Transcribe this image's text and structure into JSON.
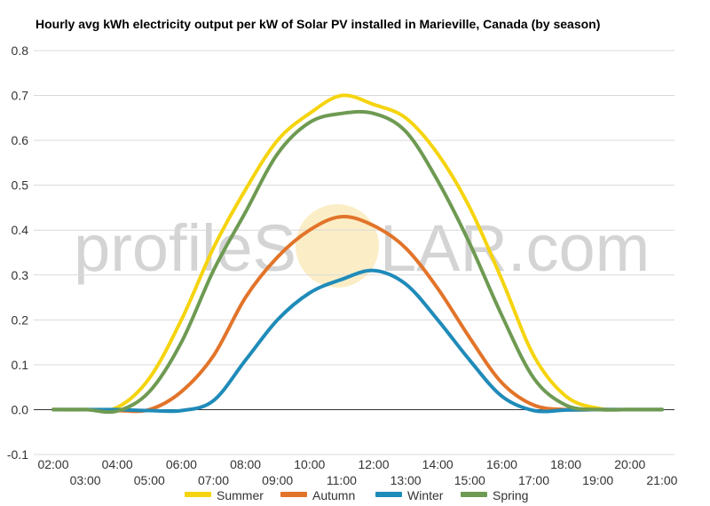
{
  "chart_data": {
    "type": "line",
    "title": "Hourly avg kWh electricity output per kW of Solar PV installed in Marieville, Canada (by season)",
    "xlabel": "",
    "ylabel": "",
    "ylim": [
      -0.1,
      0.8
    ],
    "yticks": [
      "0.8",
      "0.7",
      "0.6",
      "0.5",
      "0.4",
      "0.3",
      "0.2",
      "0.1",
      "0.0",
      "-0.1"
    ],
    "categories": [
      "02:00",
      "03:00",
      "04:00",
      "05:00",
      "06:00",
      "07:00",
      "08:00",
      "09:00",
      "10:00",
      "11:00",
      "12:00",
      "13:00",
      "14:00",
      "15:00",
      "16:00",
      "17:00",
      "18:00",
      "19:00",
      "20:00",
      "21:00"
    ],
    "grid": true,
    "legend": "bottom",
    "series": [
      {
        "name": "Summer",
        "color": "#f5d40f",
        "values": [
          0,
          0,
          0.005,
          0.07,
          0.2,
          0.36,
          0.49,
          0.6,
          0.66,
          0.7,
          0.68,
          0.65,
          0.57,
          0.45,
          0.29,
          0.12,
          0.03,
          0.003,
          0,
          0
        ]
      },
      {
        "name": "Autumn",
        "color": "#e2742a",
        "values": [
          0,
          0,
          -0.002,
          0,
          0.04,
          0.12,
          0.25,
          0.34,
          0.4,
          0.43,
          0.41,
          0.36,
          0.27,
          0.16,
          0.06,
          0.01,
          0,
          0,
          0,
          0
        ]
      },
      {
        "name": "Winter",
        "color": "#1f8bb9",
        "values": [
          0,
          0,
          0,
          -0.002,
          -0.002,
          0.02,
          0.11,
          0.2,
          0.26,
          0.29,
          0.31,
          0.28,
          0.2,
          0.11,
          0.03,
          -0.002,
          -0.001,
          0,
          0,
          0
        ]
      },
      {
        "name": "Spring",
        "color": "#6e9a52",
        "values": [
          0,
          0,
          -0.003,
          0.04,
          0.15,
          0.31,
          0.44,
          0.57,
          0.64,
          0.66,
          0.66,
          0.62,
          0.51,
          0.37,
          0.21,
          0.07,
          0.01,
          0,
          0,
          0
        ]
      }
    ]
  },
  "watermark": {
    "text_left": "profileS",
    "text_right": "LAR.com",
    "sun_color": "#fbeec6"
  }
}
